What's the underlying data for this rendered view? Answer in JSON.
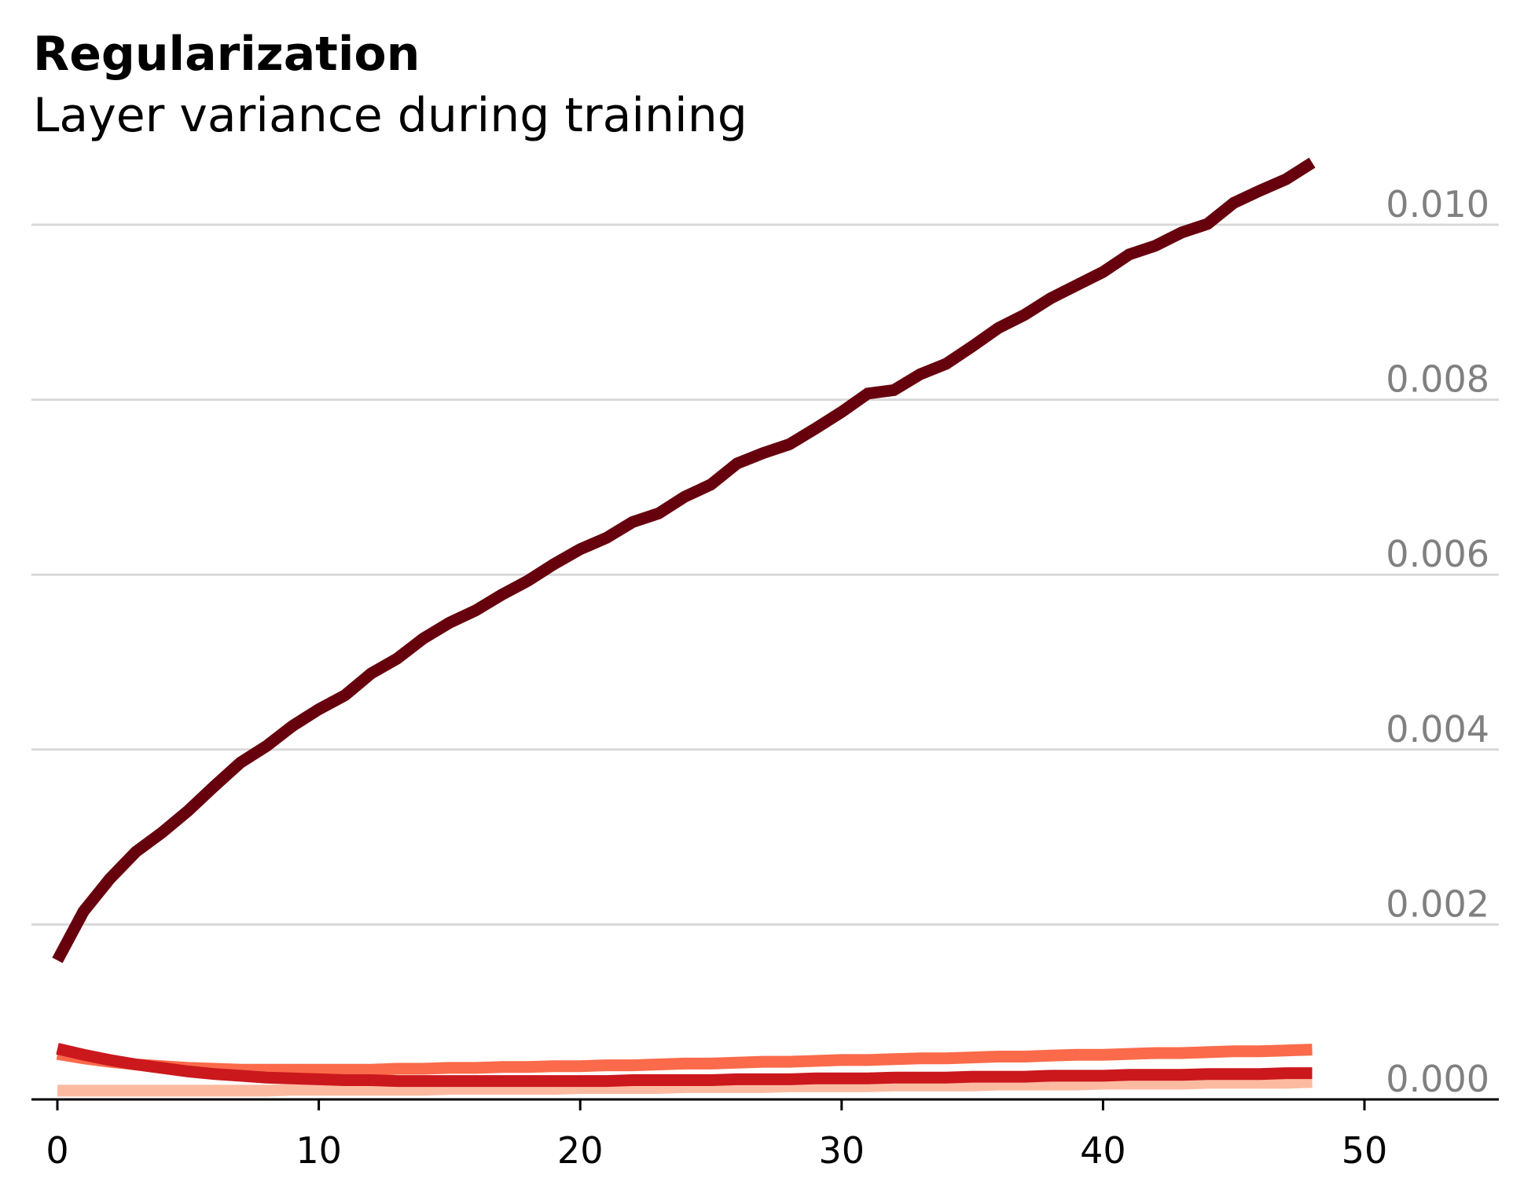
{
  "chart_data": {
    "type": "line",
    "title": "Regularization",
    "subtitle": "Layer variance during training",
    "xlabel": "",
    "ylabel": "",
    "xlim": [
      -1,
      55
    ],
    "ylim": [
      0,
      0.0105
    ],
    "xticks": [
      0,
      10,
      20,
      30,
      40,
      50
    ],
    "xtick_labels": [
      "0",
      "10",
      "20",
      "30",
      "40",
      "50"
    ],
    "yticks": [
      0.0,
      0.002,
      0.004,
      0.006,
      0.008,
      0.01
    ],
    "ytick_labels": [
      "0.000",
      "0.002",
      "0.004",
      "0.006",
      "0.008",
      "0.010"
    ],
    "grid": "horizontal",
    "ytick_side": "right",
    "x": [
      0,
      1,
      2,
      3,
      4,
      5,
      6,
      7,
      8,
      9,
      10,
      11,
      12,
      13,
      14,
      15,
      16,
      17,
      18,
      19,
      20,
      21,
      22,
      23,
      24,
      25,
      26,
      27,
      28,
      29,
      30,
      31,
      32,
      33,
      34,
      35,
      36,
      37,
      38,
      39,
      40,
      41,
      42,
      43,
      44,
      45,
      46,
      47,
      48
    ],
    "series": [
      {
        "color": "#fcbba1",
        "values": [
          0.0001,
          0.0001,
          0.0001,
          0.0001,
          0.0001,
          0.0001,
          0.0001,
          0.0001,
          0.0001,
          0.00011,
          0.00011,
          0.00011,
          0.00011,
          0.00011,
          0.00011,
          0.00012,
          0.00012,
          0.00012,
          0.00012,
          0.00012,
          0.00013,
          0.00013,
          0.00013,
          0.00013,
          0.00014,
          0.00014,
          0.00014,
          0.00014,
          0.00015,
          0.00015,
          0.00015,
          0.00015,
          0.00016,
          0.00016,
          0.00016,
          0.00016,
          0.00017,
          0.00017,
          0.00017,
          0.00017,
          0.00018,
          0.00018,
          0.00018,
          0.00018,
          0.00019,
          0.00019,
          0.00019,
          0.00019,
          0.0002
        ]
      },
      {
        "color": "#fb6a4a",
        "values": [
          0.00052,
          0.00047,
          0.00043,
          0.0004,
          0.00038,
          0.00036,
          0.00035,
          0.00034,
          0.00034,
          0.00034,
          0.00034,
          0.00034,
          0.00034,
          0.00035,
          0.00035,
          0.00036,
          0.00036,
          0.00037,
          0.00037,
          0.00038,
          0.00038,
          0.00039,
          0.00039,
          0.0004,
          0.00041,
          0.00041,
          0.00042,
          0.00043,
          0.00043,
          0.00044,
          0.00045,
          0.00045,
          0.00046,
          0.00047,
          0.00047,
          0.00048,
          0.00049,
          0.00049,
          0.0005,
          0.00051,
          0.00051,
          0.00052,
          0.00053,
          0.00053,
          0.00054,
          0.00055,
          0.00055,
          0.00056,
          0.00057
        ]
      },
      {
        "color": "#cb181d",
        "values": [
          0.00058,
          0.00051,
          0.00045,
          0.0004,
          0.00036,
          0.00032,
          0.00029,
          0.00027,
          0.00025,
          0.00024,
          0.00023,
          0.00022,
          0.00022,
          0.00021,
          0.00021,
          0.00021,
          0.00021,
          0.00021,
          0.00021,
          0.00021,
          0.00021,
          0.00021,
          0.00022,
          0.00022,
          0.00022,
          0.00022,
          0.00023,
          0.00023,
          0.00023,
          0.00024,
          0.00024,
          0.00024,
          0.00025,
          0.00025,
          0.00025,
          0.00026,
          0.00026,
          0.00026,
          0.00027,
          0.00027,
          0.00027,
          0.00028,
          0.00028,
          0.00028,
          0.00029,
          0.00029,
          0.00029,
          0.0003,
          0.0003
        ]
      },
      {
        "color": "#67000d",
        "values": [
          0.00159,
          0.00215,
          0.00252,
          0.00283,
          0.00305,
          0.0033,
          0.00358,
          0.00385,
          0.00404,
          0.00427,
          0.00446,
          0.00462,
          0.00487,
          0.00504,
          0.00527,
          0.00545,
          0.00559,
          0.00577,
          0.00593,
          0.00612,
          0.00629,
          0.00642,
          0.0066,
          0.0067,
          0.00689,
          0.00703,
          0.00727,
          0.00739,
          0.00749,
          0.00767,
          0.00786,
          0.00807,
          0.00811,
          0.00829,
          0.00841,
          0.00861,
          0.00882,
          0.00897,
          0.00916,
          0.00931,
          0.00946,
          0.00966,
          0.00976,
          0.00991,
          0.01001,
          0.01025,
          0.01039,
          0.01052,
          0.01071
        ]
      }
    ]
  }
}
